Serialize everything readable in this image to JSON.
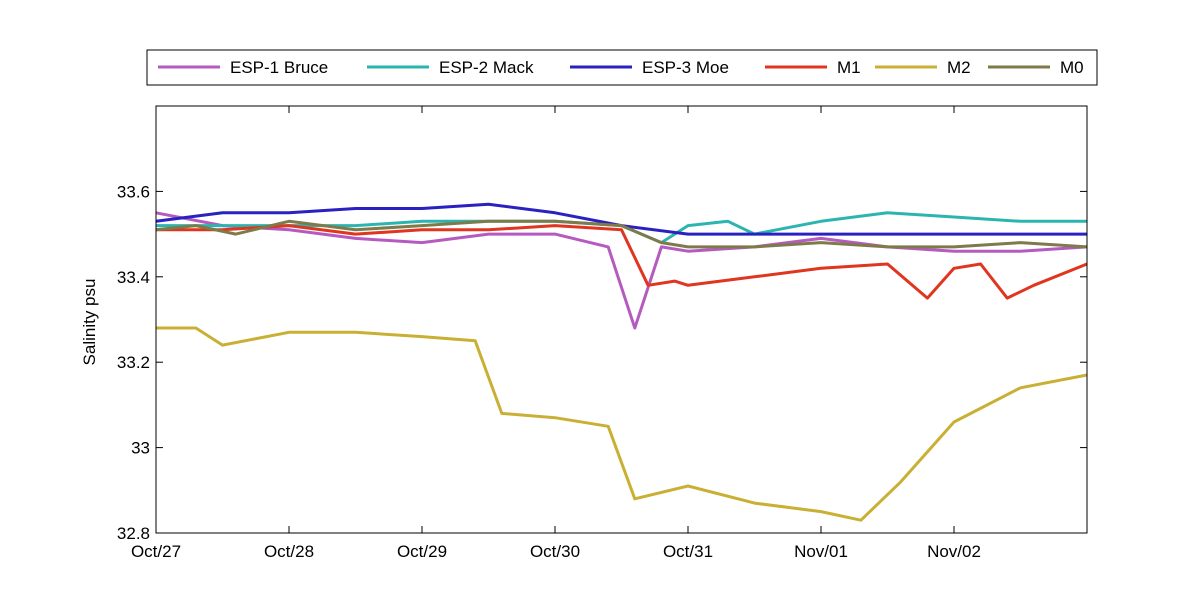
{
  "chart_data": {
    "type": "line",
    "title": "",
    "xlabel": "",
    "ylabel": "Salinity psu",
    "xlim": [
      "2012-10-27",
      "2012-11-03"
    ],
    "ylim": [
      32.8,
      33.8
    ],
    "x_ticks": [
      "Oct/27",
      "Oct/28",
      "Oct/29",
      "Oct/30",
      "Oct/31",
      "Nov/01",
      "Nov/02"
    ],
    "y_ticks": [
      {
        "value": 32.8,
        "label": "32.8"
      },
      {
        "value": 33.0,
        "label": "33"
      },
      {
        "value": 33.2,
        "label": "33.2"
      },
      {
        "value": 33.4,
        "label": "33.4"
      },
      {
        "value": 33.6,
        "label": "33.6"
      }
    ],
    "grid": false,
    "legend_placement": "top, outside plot",
    "series": [
      {
        "name": "ESP-1 Bruce",
        "color": "#b55bc0",
        "x": [
          "2012-10-27",
          "2012-10-27T12:00",
          "2012-10-28",
          "2012-10-28T12:00",
          "2012-10-29",
          "2012-10-29T12:00",
          "2012-10-30",
          "2012-10-30T09:36",
          "2012-10-30T14:24",
          "2012-10-30T19:12",
          "2012-10-31",
          "2012-10-31T12:00",
          "2012-11-01",
          "2012-11-01T12:00",
          "2012-11-02",
          "2012-11-02T12:00",
          "2012-11-03"
        ],
        "y": [
          33.55,
          33.52,
          33.51,
          33.49,
          33.48,
          33.5,
          33.5,
          33.47,
          33.28,
          33.47,
          33.46,
          33.47,
          33.49,
          33.47,
          33.46,
          33.46,
          33.47
        ]
      },
      {
        "name": "ESP-2 Mack",
        "color": "#2cb5b0",
        "x": [
          "2012-10-27",
          "2012-10-27T12:00",
          "2012-10-28",
          "2012-10-28T12:00",
          "2012-10-29",
          "2012-10-29T12:00",
          "2012-10-30",
          "2012-10-30T12:00",
          "2012-10-30T19:12",
          "2012-10-31",
          "2012-10-31T07:12",
          "2012-10-31T12:00",
          "2012-11-01",
          "2012-11-01T12:00",
          "2012-11-02",
          "2012-11-02T12:00",
          "2012-11-03"
        ],
        "y": [
          33.52,
          33.52,
          33.52,
          33.52,
          33.53,
          33.53,
          33.53,
          33.52,
          33.48,
          33.52,
          33.53,
          33.5,
          33.53,
          33.55,
          33.54,
          33.53,
          33.53
        ]
      },
      {
        "name": "ESP-3 Moe",
        "color": "#2a22c0",
        "x": [
          "2012-10-27",
          "2012-10-27T12:00",
          "2012-10-28",
          "2012-10-28T12:00",
          "2012-10-29",
          "2012-10-29T12:00",
          "2012-10-30",
          "2012-10-30T12:00",
          "2012-10-31",
          "2012-10-31T12:00",
          "2012-11-01",
          "2012-11-01T12:00",
          "2012-11-02",
          "2012-11-02T12:00",
          "2012-11-03"
        ],
        "y": [
          33.53,
          33.55,
          33.55,
          33.56,
          33.56,
          33.57,
          33.55,
          33.52,
          33.5,
          33.5,
          33.5,
          33.5,
          33.5,
          33.5,
          33.5
        ]
      },
      {
        "name": "M1",
        "color": "#e0351f",
        "x": [
          "2012-10-27",
          "2012-10-27T12:00",
          "2012-10-28",
          "2012-10-28T12:00",
          "2012-10-29",
          "2012-10-29T12:00",
          "2012-10-30",
          "2012-10-30T12:00",
          "2012-10-30T16:48",
          "2012-10-30T21:36",
          "2012-10-31",
          "2012-10-31T12:00",
          "2012-11-01",
          "2012-11-01T12:00",
          "2012-11-01T19:12",
          "2012-11-02",
          "2012-11-02T04:48",
          "2012-11-02T09:36",
          "2012-11-02T14:24",
          "2012-11-03"
        ],
        "y": [
          33.51,
          33.51,
          33.52,
          33.5,
          33.51,
          33.51,
          33.52,
          33.51,
          33.38,
          33.39,
          33.38,
          33.4,
          33.42,
          33.43,
          33.35,
          33.42,
          33.43,
          33.35,
          33.38,
          33.43
        ]
      },
      {
        "name": "M2",
        "color": "#c9b035",
        "x": [
          "2012-10-27",
          "2012-10-27T07:12",
          "2012-10-27T12:00",
          "2012-10-28",
          "2012-10-28T12:00",
          "2012-10-29",
          "2012-10-29T09:36",
          "2012-10-29T14:24",
          "2012-10-30",
          "2012-10-30T09:36",
          "2012-10-30T14:24",
          "2012-10-31",
          "2012-10-31T12:00",
          "2012-11-01",
          "2012-11-01T07:12",
          "2012-11-01T14:24",
          "2012-11-02",
          "2012-11-02T12:00",
          "2012-11-03"
        ],
        "y": [
          33.28,
          33.28,
          33.24,
          33.27,
          33.27,
          33.26,
          33.25,
          33.08,
          33.07,
          33.05,
          32.88,
          32.91,
          32.87,
          32.85,
          32.83,
          32.92,
          33.06,
          33.14,
          33.17
        ]
      },
      {
        "name": "M0",
        "color": "#7e7a4a",
        "x": [
          "2012-10-27",
          "2012-10-27T07:12",
          "2012-10-27T14:24",
          "2012-10-28",
          "2012-10-28T12:00",
          "2012-10-29",
          "2012-10-29T12:00",
          "2012-10-30",
          "2012-10-30T12:00",
          "2012-10-30T19:12",
          "2012-10-31",
          "2012-10-31T12:00",
          "2012-11-01",
          "2012-11-01T12:00",
          "2012-11-02",
          "2012-11-02T12:00",
          "2012-11-03"
        ],
        "y": [
          33.51,
          33.52,
          33.5,
          33.53,
          33.51,
          33.52,
          33.53,
          33.53,
          33.52,
          33.48,
          33.47,
          33.47,
          33.48,
          33.47,
          33.47,
          33.48,
          33.47
        ]
      }
    ]
  }
}
